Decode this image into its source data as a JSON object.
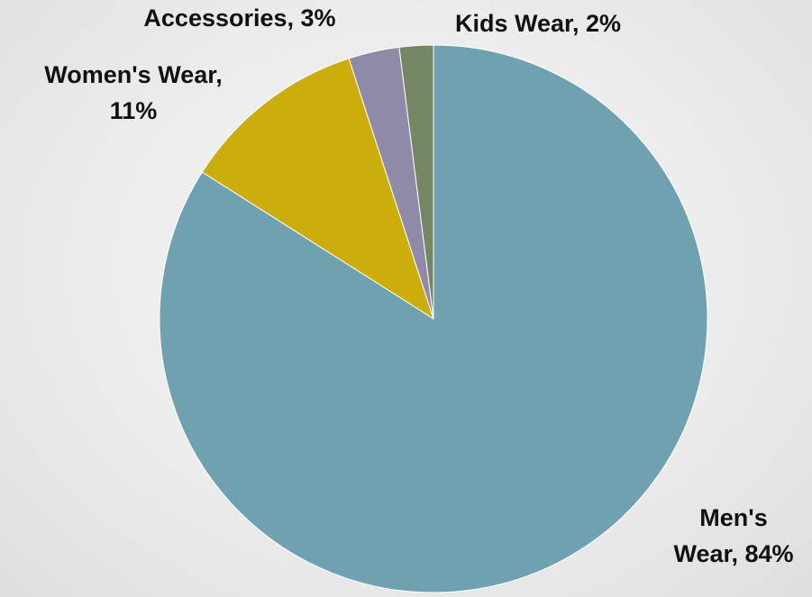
{
  "chart_data": {
    "type": "pie",
    "title": "",
    "start_angle_deg": 0,
    "direction": "clockwise",
    "series": [
      {
        "categories": [
          "Men's Wear",
          "Women's Wear",
          "Accessories",
          "Kids Wear"
        ],
        "values": [
          84,
          11,
          3,
          2
        ],
        "unit": "%",
        "colors": [
          "#6fa1b1",
          "#cbae0c",
          "#8e8aa7",
          "#748663"
        ],
        "labels": [
          [
            "Men's",
            "Wear, 84%"
          ],
          [
            "Women's Wear,",
            "11%"
          ],
          [
            "Accessories, 3%"
          ],
          [
            "Kids Wear, 2%"
          ]
        ]
      }
    ]
  }
}
